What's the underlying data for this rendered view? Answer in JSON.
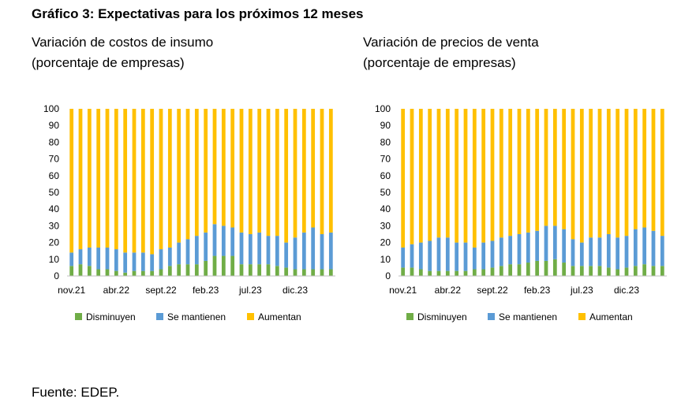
{
  "title": "Gráfico 3: Expectativas para los próximos 12 meses",
  "source": "Fuente: EDEP.",
  "colors": {
    "disminuyen": "#70AD47",
    "se_mantienen": "#5B9BD5",
    "aumentan": "#FFC000"
  },
  "chart_data": [
    {
      "type": "bar",
      "stacked": true,
      "title": "Variación de costos de insumo\n(porcentaje de empresas)",
      "ylim": [
        0,
        100
      ],
      "yticks": [
        0,
        10,
        20,
        30,
        40,
        50,
        60,
        70,
        80,
        90,
        100
      ],
      "xtick_labels": [
        "nov.21",
        "abr.22",
        "sept.22",
        "feb.23",
        "jul.23",
        "dic.23"
      ],
      "xtick_indices": [
        0,
        5,
        10,
        15,
        20,
        25
      ],
      "categories": [
        "nov.21",
        "dic.21",
        "ene.22",
        "feb.22",
        "mar.22",
        "abr.22",
        "may.22",
        "jun.22",
        "jul.22",
        "ago.22",
        "sept.22",
        "oct.22",
        "nov.22",
        "dic.22",
        "ene.23",
        "feb.23",
        "mar.23",
        "abr.23",
        "may.23",
        "jun.23",
        "jul.23",
        "ago.23",
        "sept.23",
        "oct.23",
        "nov.23",
        "dic.23",
        "ene.24",
        "feb.24",
        "mar.24",
        "abr.24"
      ],
      "legend": [
        "Disminuyen",
        "Se mantienen",
        "Aumentan"
      ],
      "series": [
        {
          "name": "Disminuyen",
          "values": [
            6,
            7,
            6,
            4,
            4,
            3,
            2,
            3,
            3,
            3,
            4,
            6,
            7,
            7,
            7,
            9,
            12,
            12,
            12,
            7,
            7,
            7,
            7,
            6,
            5,
            4,
            4,
            4,
            4,
            4
          ]
        },
        {
          "name": "Se mantienen",
          "values": [
            8,
            9,
            11,
            13,
            13,
            13,
            12,
            11,
            11,
            10,
            12,
            11,
            13,
            15,
            17,
            17,
            19,
            18,
            17,
            19,
            18,
            19,
            17,
            18,
            15,
            19,
            22,
            25,
            21,
            22
          ]
        },
        {
          "name": "Aumentan",
          "values": [
            86,
            84,
            83,
            83,
            83,
            84,
            86,
            86,
            86,
            87,
            84,
            83,
            80,
            78,
            76,
            74,
            69,
            70,
            71,
            74,
            75,
            74,
            76,
            76,
            80,
            77,
            74,
            71,
            75,
            74
          ]
        }
      ]
    },
    {
      "type": "bar",
      "stacked": true,
      "title": "Variación de precios de venta\n(porcentaje de empresas)",
      "ylim": [
        0,
        100
      ],
      "yticks": [
        0,
        10,
        20,
        30,
        40,
        50,
        60,
        70,
        80,
        90,
        100
      ],
      "xtick_labels": [
        "nov.21",
        "abr.22",
        "sept.22",
        "feb.23",
        "jul.23",
        "dic.23"
      ],
      "xtick_indices": [
        0,
        5,
        10,
        15,
        20,
        25
      ],
      "categories": [
        "nov.21",
        "dic.21",
        "ene.22",
        "feb.22",
        "mar.22",
        "abr.22",
        "may.22",
        "jun.22",
        "jul.22",
        "ago.22",
        "sept.22",
        "oct.22",
        "nov.22",
        "dic.22",
        "ene.23",
        "feb.23",
        "mar.23",
        "abr.23",
        "may.23",
        "jun.23",
        "jul.23",
        "ago.23",
        "sept.23",
        "oct.23",
        "nov.23",
        "dic.23",
        "ene.24",
        "feb.24",
        "mar.24",
        "abr.24"
      ],
      "legend": [
        "Disminuyen",
        "Se mantienen",
        "Aumentan"
      ],
      "series": [
        {
          "name": "Disminuyen",
          "values": [
            5,
            5,
            4,
            3,
            3,
            3,
            3,
            3,
            4,
            4,
            5,
            6,
            7,
            7,
            8,
            9,
            9,
            10,
            8,
            6,
            6,
            6,
            6,
            5,
            4,
            5,
            6,
            7,
            6,
            6
          ]
        },
        {
          "name": "Se mantienen",
          "values": [
            12,
            14,
            16,
            18,
            20,
            20,
            17,
            17,
            13,
            16,
            16,
            17,
            17,
            18,
            18,
            18,
            21,
            20,
            20,
            16,
            14,
            17,
            17,
            20,
            19,
            19,
            22,
            22,
            21,
            18
          ]
        },
        {
          "name": "Aumentan",
          "values": [
            83,
            81,
            80,
            79,
            77,
            77,
            80,
            80,
            83,
            80,
            79,
            77,
            76,
            75,
            74,
            73,
            70,
            70,
            72,
            78,
            80,
            77,
            77,
            75,
            77,
            76,
            72,
            71,
            73,
            76
          ]
        }
      ]
    }
  ]
}
